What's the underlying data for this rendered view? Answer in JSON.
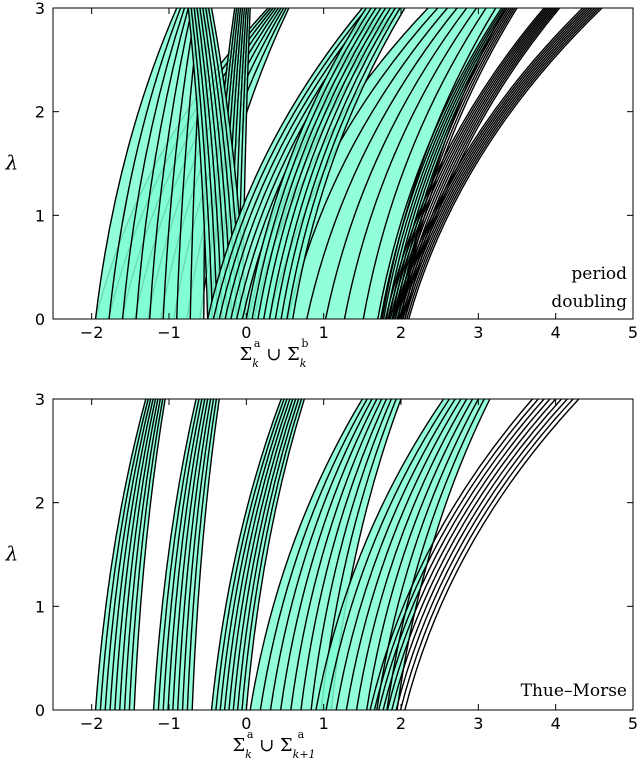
{
  "chart_data": [
    {
      "type": "area",
      "annotation": [
        "period",
        "doubling"
      ],
      "xlabel": "Σ_k^a ∪ Σ_k^b",
      "ylabel": "λ",
      "xlim": [
        -2.5,
        5
      ],
      "ylim": [
        0,
        3
      ],
      "xticks": [
        "−2",
        "−1",
        "0",
        "1",
        "2",
        "3",
        "4",
        "5"
      ],
      "yticks": [
        "0",
        "1",
        "2",
        "3"
      ],
      "fill_color": "#7fffd4",
      "line_color": "#000000",
      "gap_opening_points": [
        -1.95,
        -1.4,
        -1.15,
        -0.9,
        -0.6,
        -0.5,
        -0.2,
        -0.05,
        0.05,
        0.2,
        0.5,
        0.6,
        0.9,
        1.15,
        1.4,
        1.75,
        1.85,
        1.95
      ],
      "band_sets": [
        {
          "base_left": -1.95,
          "base_right": -0.6,
          "top_left": 0.28,
          "top_right": 0.55,
          "shaded": true
        },
        {
          "base_left": -1.95,
          "base_right": -0.55,
          "top_left": -0.9,
          "top_right": -0.5,
          "shaded": true
        },
        {
          "base_left": -0.5,
          "base_right": -0.05,
          "top_left": -0.15,
          "top_right": 0.05,
          "shaded": true
        },
        {
          "base_left": -0.5,
          "base_right": 0,
          "top_left": -0.75,
          "top_right": -0.45,
          "shaded": true
        },
        {
          "base_left": 0.05,
          "base_right": 2.0,
          "top_left": 2.35,
          "top_right": 3.35,
          "shaded": true
        },
        {
          "base_left": -0.5,
          "base_right": 0.1,
          "top_left": 1.5,
          "top_right": 2.0,
          "shaded": true
        },
        {
          "base_left": 0.0,
          "base_right": 0.6,
          "top_left": 1.55,
          "top_right": 2.05,
          "shaded": true
        },
        {
          "base_left": 1.7,
          "base_right": 2.0,
          "top_left": 3.3,
          "top_right": 3.5,
          "shaded": false
        },
        {
          "base_left": 1.8,
          "base_right": 2.05,
          "top_left": 3.85,
          "top_right": 4.05,
          "shaded": false
        },
        {
          "base_left": 1.9,
          "base_right": 2.1,
          "top_left": 4.35,
          "top_right": 4.6,
          "shaded": false
        }
      ]
    },
    {
      "type": "area",
      "annotation": [
        "Thue–Morse"
      ],
      "xlabel": "Σ_k^a ∪ Σ_(k+1)^a",
      "ylabel": "λ",
      "xlim": [
        -2.5,
        5
      ],
      "ylim": [
        0,
        3
      ],
      "xticks": [
        "−2",
        "−1",
        "0",
        "1",
        "2",
        "3",
        "4",
        "5"
      ],
      "yticks": [
        "0",
        "1",
        "2",
        "3"
      ],
      "fill_color": "#7fffd4",
      "line_color": "#000000",
      "gap_opening_points": [
        -1.95,
        -1.7,
        -1.5,
        -1.2,
        -0.95,
        -0.75,
        -0.45,
        -0.05,
        0.05,
        0.3,
        0.55,
        0.8,
        1.0,
        1.25,
        1.5,
        1.75,
        1.95
      ],
      "band_sets": [
        {
          "base_left": -1.95,
          "base_right": -1.45,
          "top_left": -1.3,
          "top_right": -1.05,
          "shaded": true
        },
        {
          "base_left": -1.2,
          "base_right": -0.7,
          "top_left": -0.65,
          "top_right": -0.35,
          "shaded": true
        },
        {
          "base_left": -0.45,
          "base_right": 0.0,
          "top_left": 0.45,
          "top_right": 0.75,
          "shaded": true
        },
        {
          "base_left": 0.05,
          "base_right": 1.1,
          "top_left": 1.5,
          "top_right": 2.0,
          "shaded": true
        },
        {
          "base_left": 0.9,
          "base_right": 1.95,
          "top_left": 2.55,
          "top_right": 3.15,
          "shaded": true
        },
        {
          "base_left": 1.6,
          "base_right": 2.05,
          "top_left": 3.7,
          "top_right": 4.3,
          "shaded": false
        }
      ]
    }
  ]
}
